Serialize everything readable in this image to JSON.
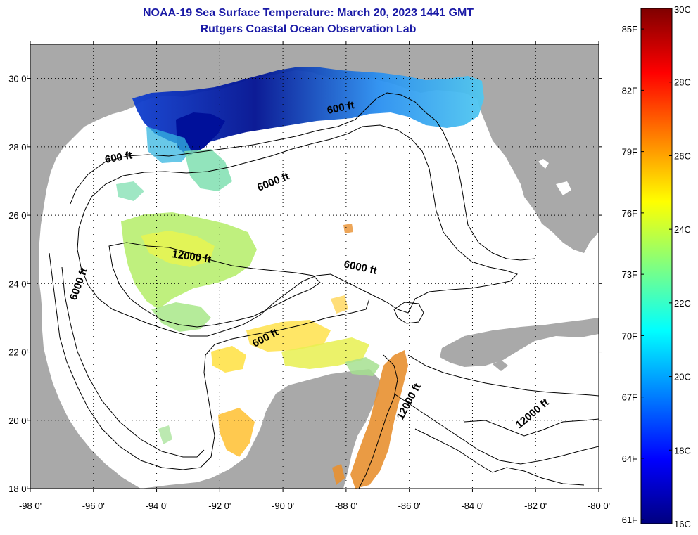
{
  "title": "NOAA-19 Sea Surface Temperature:  March 20, 2023 1441 GMT",
  "subtitle": "Rutgers Coastal Ocean Observation Lab",
  "map": {
    "lon_range": [
      -98,
      -80
    ],
    "lat_range": [
      18,
      31
    ],
    "x_ticks": [
      {
        "lon": -98,
        "label": "-98 0'"
      },
      {
        "lon": -96,
        "label": "-96 0'"
      },
      {
        "lon": -94,
        "label": "-94 0'"
      },
      {
        "lon": -92,
        "label": "-92 0'"
      },
      {
        "lon": -90,
        "label": "-90 0'"
      },
      {
        "lon": -88,
        "label": "-88 0'"
      },
      {
        "lon": -86,
        "label": "-86 0'"
      },
      {
        "lon": -84,
        "label": "-84 0'"
      },
      {
        "lon": -82,
        "label": "-82 0'"
      },
      {
        "lon": -80,
        "label": "-80 0'"
      }
    ],
    "y_ticks": [
      {
        "lat": 30,
        "label": "30 0'"
      },
      {
        "lat": 28,
        "label": "28 0'"
      },
      {
        "lat": 26,
        "label": "26 0'"
      },
      {
        "lat": 24,
        "label": "24 0'"
      },
      {
        "lat": 22,
        "label": "22 0'"
      },
      {
        "lat": 20,
        "label": "20 0'"
      },
      {
        "lat": 18,
        "label": "18 0'"
      }
    ],
    "grid": "dotted",
    "land_color": "#a9a9a9",
    "water_color": "#ffffff",
    "contour_labels": [
      {
        "text": "600 ft"
      },
      {
        "text": "600 ft"
      },
      {
        "text": "600 ft"
      },
      {
        "text": "6000 ft"
      },
      {
        "text": "6000 ft"
      },
      {
        "text": "6000 ft"
      },
      {
        "text": "12000 ft"
      },
      {
        "text": "12000 ft"
      },
      {
        "text": "12000 ft"
      }
    ]
  },
  "colorbar": {
    "min_c": 16,
    "max_c": 30,
    "colors": [
      "#00007f",
      "#0000ff",
      "#0080ff",
      "#00ffff",
      "#80ff80",
      "#ffff00",
      "#ff8000",
      "#ff0000",
      "#7f0000"
    ],
    "celsius_labels": [
      {
        "value": 30,
        "label": "30C"
      },
      {
        "value": 28,
        "label": "28C"
      },
      {
        "value": 26,
        "label": "26C"
      },
      {
        "value": 24,
        "label": "24C"
      },
      {
        "value": 22,
        "label": "22C"
      },
      {
        "value": 20,
        "label": "20C"
      },
      {
        "value": 18,
        "label": "18C"
      },
      {
        "value": 16,
        "label": "16C"
      }
    ],
    "fahrenheit_labels": [
      {
        "value": 85,
        "label": "85F"
      },
      {
        "value": 82,
        "label": "82F"
      },
      {
        "value": 79,
        "label": "79F"
      },
      {
        "value": 76,
        "label": "76F"
      },
      {
        "value": 73,
        "label": "73F"
      },
      {
        "value": 70,
        "label": "70F"
      },
      {
        "value": 67,
        "label": "67F"
      },
      {
        "value": 64,
        "label": "64F"
      },
      {
        "value": 61,
        "label": "61F"
      }
    ]
  }
}
